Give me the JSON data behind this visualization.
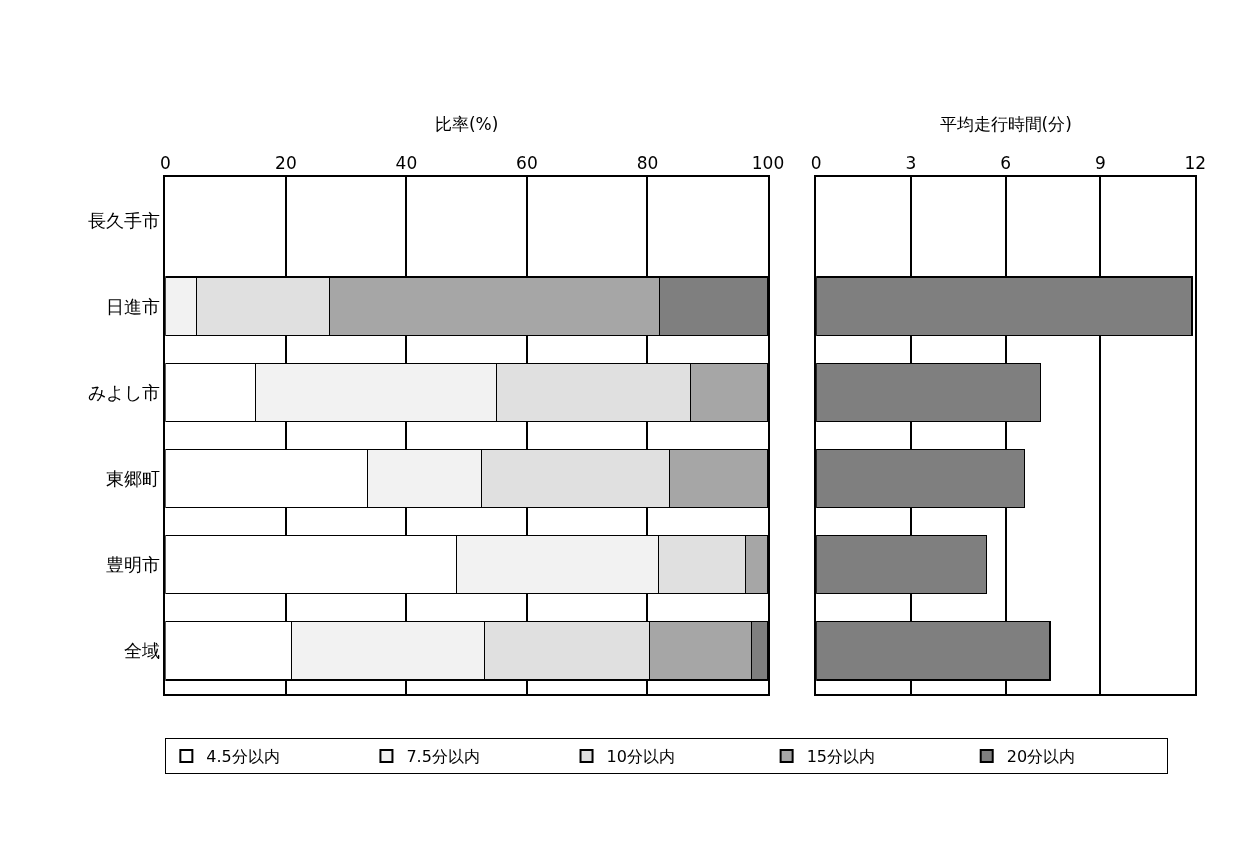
{
  "chart_data": [
    {
      "type": "bar",
      "orientation": "horizontal",
      "stacked": true,
      "xlabel": "比率(%)",
      "categories": [
        "長久手市",
        "日進市",
        "みよし市",
        "東郷町",
        "豊明市",
        "全域"
      ],
      "xlim": [
        0,
        100
      ],
      "xticks": [
        0,
        20,
        40,
        60,
        80,
        100
      ],
      "grid": "x",
      "legend": "bottom",
      "series": [
        {
          "name": "4.5分以内",
          "color": "#ffffff",
          "values": [
            null,
            0,
            14.9,
            33.6,
            48.3,
            20.9
          ]
        },
        {
          "name": "7.5分以内",
          "color": "#f2f2f2",
          "values": [
            null,
            5.2,
            40.0,
            18.8,
            33.5,
            32.0
          ]
        },
        {
          "name": "10分以内",
          "color": "#e0e0e0",
          "values": [
            null,
            22.0,
            32.2,
            31.3,
            14.5,
            27.4
          ]
        },
        {
          "name": "15分以内",
          "color": "#a6a6a6",
          "values": [
            null,
            54.8,
            12.9,
            16.3,
            3.6,
            16.9
          ]
        },
        {
          "name": "20分以内",
          "color": "#7f7f7f",
          "values": [
            null,
            18.0,
            null,
            null,
            null,
            2.8
          ]
        }
      ]
    },
    {
      "type": "bar",
      "orientation": "horizontal",
      "xlabel": "平均走行時間(分)",
      "categories": [
        null,
        null,
        null,
        null,
        null,
        null
      ],
      "xlim": [
        0,
        12
      ],
      "xticks": [
        0,
        3,
        6,
        9,
        12
      ],
      "grid": "x",
      "tick_labels": "x",
      "series": [
        {
          "color": "#7f7f7f",
          "values": [
            null,
            11.9,
            7.1,
            6.6,
            5.4,
            7.4
          ]
        }
      ]
    }
  ]
}
